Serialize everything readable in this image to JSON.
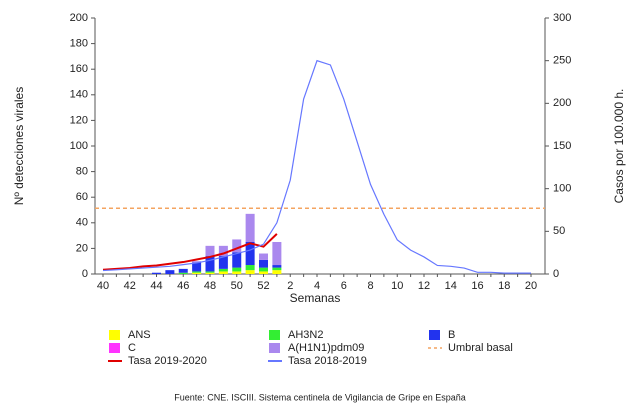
{
  "chart_data": {
    "type": "bar",
    "x_label": "Semanas",
    "y_label": "Nº detecciones virales",
    "y2_label": "Casos por 100.000 h.",
    "source": "Fuente: CNE. ISCIII. Sistema centinela de Vigilancia de Gripe en España",
    "categories": [
      "40",
      null,
      "42",
      null,
      "44",
      null,
      "46",
      null,
      "48",
      null,
      "50",
      null,
      "52",
      null,
      "2",
      null,
      "4",
      null,
      "6",
      null,
      "8",
      null,
      "10",
      null,
      "12",
      null,
      "14",
      null,
      "16",
      null,
      "18",
      null,
      "20"
    ],
    "ylim": [
      0,
      200
    ],
    "yticks": [
      0,
      20,
      40,
      60,
      80,
      100,
      120,
      140,
      160,
      180,
      200
    ],
    "y2lim": [
      0,
      300
    ],
    "y2ticks": [
      0,
      50,
      100,
      150,
      200,
      250,
      300
    ],
    "stacked": true,
    "series": [
      {
        "name": "ANS",
        "color": "#ffff00",
        "values": [
          0,
          0,
          0,
          0,
          0,
          0,
          0,
          1,
          1,
          2,
          2,
          3,
          2,
          3,
          null,
          null,
          null,
          null,
          null,
          null,
          null,
          null,
          null,
          null,
          null,
          null,
          null,
          null,
          null,
          null,
          null,
          null,
          null
        ]
      },
      {
        "name": "C",
        "color": "#ff33ff",
        "values": [
          0,
          0,
          0,
          0,
          0,
          0,
          0,
          0,
          0,
          0,
          0,
          0,
          0,
          0,
          null,
          null,
          null,
          null,
          null,
          null,
          null,
          null,
          null,
          null,
          null,
          null,
          null,
          null,
          null,
          null,
          null,
          null,
          null
        ]
      },
      {
        "name": "AH3N2",
        "color": "#33ee33",
        "values": [
          0,
          0,
          0,
          0,
          0,
          0,
          1,
          1,
          1,
          2,
          3,
          4,
          3,
          2,
          null,
          null,
          null,
          null,
          null,
          null,
          null,
          null,
          null,
          null,
          null,
          null,
          null,
          null,
          null,
          null,
          null,
          null,
          null
        ]
      },
      {
        "name": "B",
        "color": "#2233ee",
        "values": [
          0,
          0,
          0,
          0,
          1,
          3,
          3,
          7,
          12,
          10,
          12,
          18,
          6,
          2,
          null,
          null,
          null,
          null,
          null,
          null,
          null,
          null,
          null,
          null,
          null,
          null,
          null,
          null,
          null,
          null,
          null,
          null,
          null
        ]
      },
      {
        "name": "A(H1N1)pdm09",
        "color": "#aa88ee",
        "values": [
          0,
          0,
          0,
          0,
          0,
          0,
          0,
          1,
          8,
          8,
          10,
          22,
          5,
          18,
          null,
          null,
          null,
          null,
          null,
          null,
          null,
          null,
          null,
          null,
          null,
          null,
          null,
          null,
          null,
          null,
          null,
          null,
          null
        ]
      },
      {
        "name": "Tasa 2019-2020",
        "type": "line",
        "axis": "y2",
        "color": "#e00000",
        "values": [
          5,
          6,
          7,
          9,
          10,
          12,
          14,
          17,
          20,
          24,
          30,
          36,
          32,
          47,
          null,
          null,
          null,
          null,
          null,
          null,
          null,
          null,
          null,
          null,
          null,
          null,
          null,
          null,
          null,
          null,
          null,
          null,
          null
        ]
      },
      {
        "name": "Tasa 2018-2019",
        "type": "line",
        "axis": "y2",
        "color": "#6677ff",
        "values": [
          4,
          5,
          6,
          7,
          8,
          9,
          11,
          13,
          16,
          20,
          24,
          28,
          35,
          60,
          110,
          205,
          250,
          245,
          205,
          155,
          105,
          70,
          40,
          28,
          20,
          10,
          9,
          7,
          2,
          2,
          1,
          1,
          1
        ]
      }
    ],
    "threshold": {
      "name": "Umbral basal",
      "value": 77,
      "axis": "y2",
      "color": "#f4a460"
    }
  }
}
